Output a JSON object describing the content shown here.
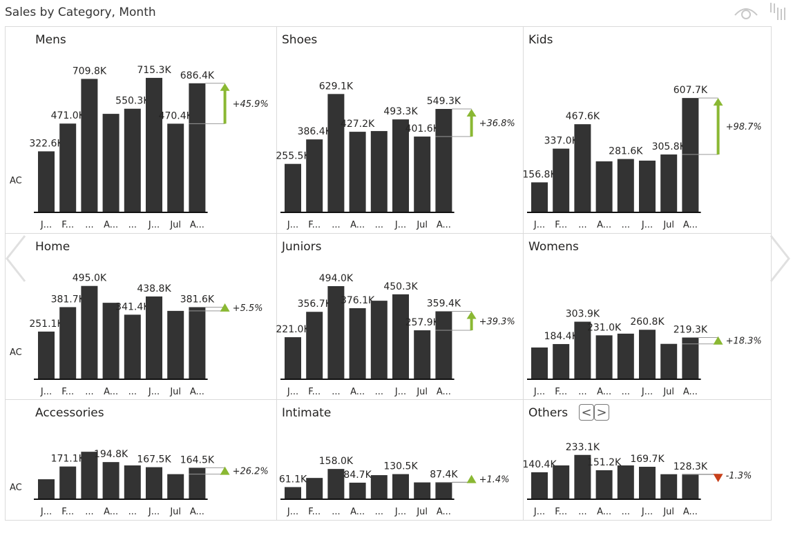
{
  "title": "Sales by Category, Month",
  "icons": {
    "top_right": [
      "eye-icon",
      "bars-icon"
    ]
  },
  "colors": {
    "bar": "#333333",
    "positive": "#8ab833",
    "negative": "#c8401a",
    "connector": "#999999",
    "border": "#dadada"
  },
  "chart_data": {
    "type": "bar",
    "layout": "small-multiples 3x3, shared scale",
    "series_label": "AC",
    "categories": [
      "J...",
      "F...",
      "...",
      "A...",
      "...",
      "J...",
      "Jul",
      "A..."
    ],
    "unit": "K",
    "panels": [
      {
        "name": "Mens",
        "values": [
          322.6,
          471.0,
          709.8,
          523,
          550.3,
          715.3,
          470.4,
          686.4
        ],
        "labels": [
          "322.6K",
          "471.0K",
          "709.8K",
          null,
          "550.3K",
          "715.3K",
          "470.4K",
          "686.4K"
        ],
        "variance": "+45.9%",
        "direction": "up"
      },
      {
        "name": "Shoes",
        "values": [
          255.5,
          386.4,
          629.1,
          427.2,
          431,
          493.3,
          401.6,
          549.3
        ],
        "labels": [
          "255.5K",
          "386.4K",
          "629.1K",
          "427.2K",
          null,
          "493.3K",
          "401.6K",
          "549.3K"
        ],
        "variance": "+36.8%",
        "direction": "up"
      },
      {
        "name": "Kids",
        "values": [
          156.8,
          337.0,
          467.6,
          269,
          281.6,
          273,
          305.8,
          607.7
        ],
        "labels": [
          "156.8K",
          "337.0K",
          "467.6K",
          null,
          "281.6K",
          null,
          "305.8K",
          "607.7K"
        ],
        "variance": "+98.7%",
        "direction": "up"
      },
      {
        "name": "Home",
        "values": [
          251.1,
          381.7,
          495.0,
          405,
          341.4,
          438.8,
          361.7,
          381.6
        ],
        "labels": [
          "251.1K",
          "381.7K",
          "495.0K",
          null,
          "341.4K",
          "438.8K",
          null,
          "381.6K"
        ],
        "variance": "+5.5%",
        "direction": "up"
      },
      {
        "name": "Juniors",
        "values": [
          221.0,
          356.7,
          494.0,
          376.1,
          416,
          450.3,
          257.9,
          359.4
        ],
        "labels": [
          "221.0K",
          "356.7K",
          "494.0K",
          "376.1K",
          null,
          "450.3K",
          "257.9K",
          "359.4K"
        ],
        "variance": "+39.3%",
        "direction": "up"
      },
      {
        "name": "Womens",
        "values": [
          166,
          184.4,
          303.9,
          231.0,
          240,
          260.8,
          185.4,
          219.3
        ],
        "labels": [
          null,
          "184.4K",
          "303.9K",
          "231.0K",
          null,
          "260.8K",
          null,
          "219.3K"
        ],
        "variance": "+18.3%",
        "direction": "up"
      },
      {
        "name": "Accessories",
        "values": [
          103,
          171.1,
          250,
          194.8,
          177,
          167.5,
          130.3,
          164.5
        ],
        "labels": [
          null,
          "171.1K",
          null,
          "194.8K",
          null,
          "167.5K",
          null,
          "164.5K"
        ],
        "variance": "+26.2%",
        "direction": "up"
      },
      {
        "name": "Intimate",
        "values": [
          61.1,
          110,
          158.0,
          84.7,
          125,
          130.5,
          86.2,
          87.4
        ],
        "labels": [
          "61.1K",
          null,
          "158.0K",
          "84.7K",
          null,
          "130.5K",
          null,
          "87.4K"
        ],
        "variance": "+1.4%",
        "direction": "up"
      },
      {
        "name": "Others",
        "values": [
          140.4,
          177,
          233.1,
          151.2,
          177,
          169.7,
          130.0,
          128.3
        ],
        "labels": [
          "140.4K",
          null,
          "233.1K",
          "151.2K",
          null,
          "169.7K",
          null,
          "128.3K"
        ],
        "variance": "-1.3%",
        "direction": "down"
      }
    ]
  },
  "pager": {
    "prev": "<",
    "next": ">"
  }
}
